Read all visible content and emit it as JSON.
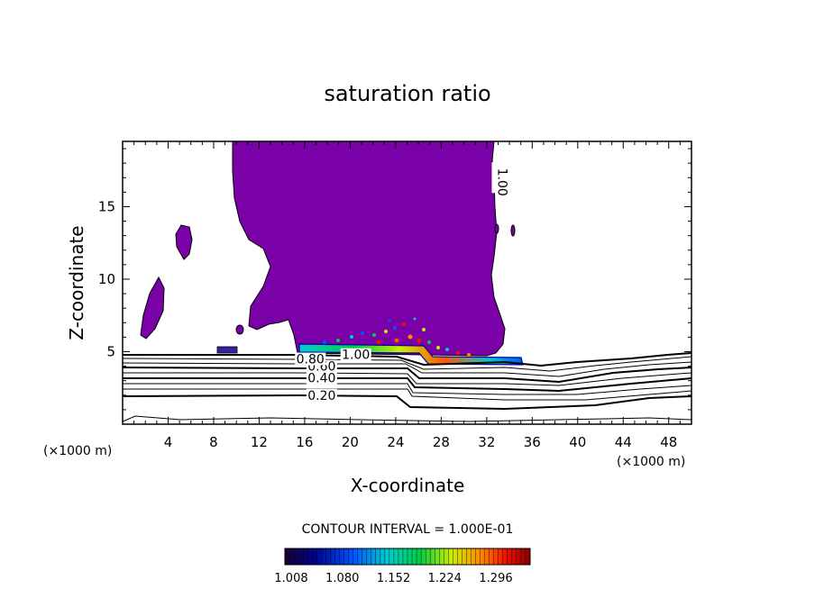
{
  "chart_data": {
    "type": "contour",
    "title": "saturation ratio",
    "xlabel": "X-coordinate",
    "ylabel": "Z-coordinate",
    "x_unit_label": "(×1000 m)",
    "y_unit_label": "(×1000 m)",
    "xlim": [
      0,
      50
    ],
    "ylim": [
      0,
      19.5
    ],
    "x_ticks": [
      4,
      8,
      12,
      16,
      20,
      24,
      28,
      32,
      36,
      40,
      44,
      48
    ],
    "y_ticks": [
      5,
      10,
      15
    ],
    "contour_interval_label": "CONTOUR INTERVAL = 1.000E-01",
    "contour_line_labels": [
      {
        "text": "0.20",
        "x": 17.5,
        "z": 2.0
      },
      {
        "text": "0.40",
        "x": 17.5,
        "z": 3.2
      },
      {
        "text": "0.60",
        "x": 17.5,
        "z": 4.0
      },
      {
        "text": "0.80",
        "x": 16.5,
        "z": 4.5
      },
      {
        "text": "1.00",
        "x": 20.5,
        "z": 4.8
      },
      {
        "text": "1.00",
        "x": 33.0,
        "z": 17.0
      }
    ],
    "supersaturated_fill_color": "#7a00a8",
    "colorbar": {
      "ticks": [
        "1.008",
        "1.080",
        "1.152",
        "1.224",
        "1.296"
      ],
      "colors": [
        "#1a0033",
        "#00008b",
        "#0055ff",
        "#00cccc",
        "#00cc44",
        "#ccee00",
        "#ff8800",
        "#ee1100",
        "#880000"
      ]
    }
  }
}
